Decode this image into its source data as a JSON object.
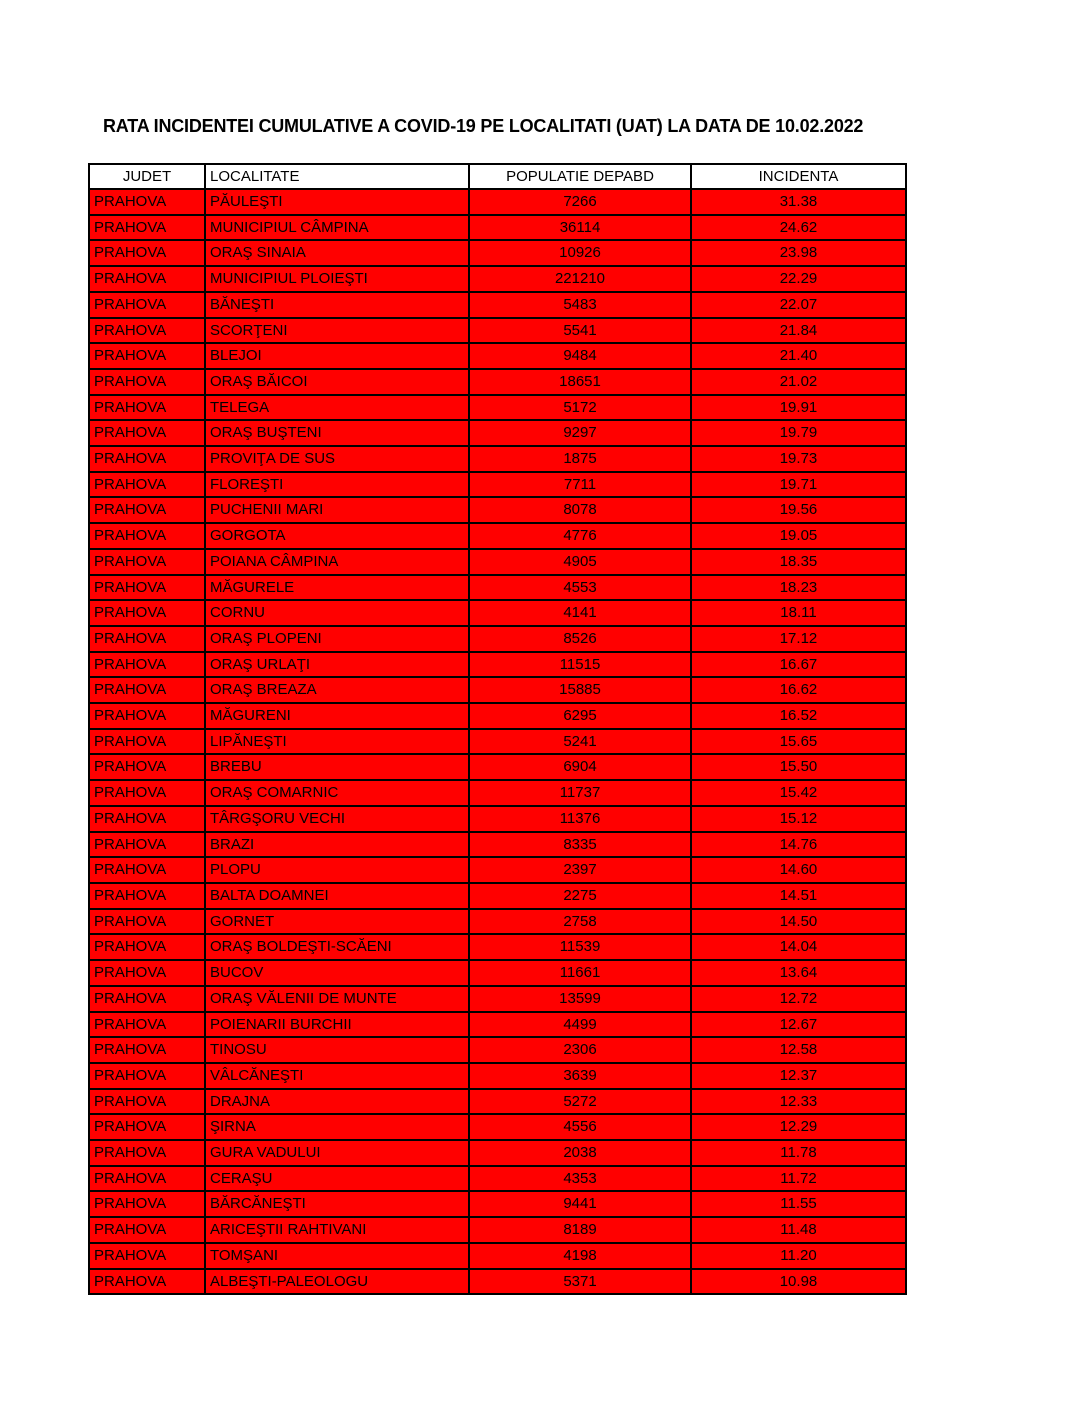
{
  "page": {
    "title": "RATA INCIDENTEI CUMULATIVE A COVID-19 PE LOCALITATI (UAT) LA DATA DE 10.02.2022"
  },
  "colors": {
    "row_background": "#FF0000",
    "header_background": "#FFFFFF",
    "border_color": "#000000",
    "text_color": "#000000"
  },
  "table": {
    "headers": [
      "JUDET",
      "LOCALITATE",
      "POPULATIE DEPABD",
      "INCIDENTA"
    ],
    "rows": [
      [
        "PRAHOVA",
        "PĂULEŞTI",
        "7266",
        "31.38"
      ],
      [
        "PRAHOVA",
        "MUNICIPIUL CÂMPINA",
        "36114",
        "24.62"
      ],
      [
        "PRAHOVA",
        "ORAŞ SINAIA",
        "10926",
        "23.98"
      ],
      [
        "PRAHOVA",
        "MUNICIPIUL PLOIEŞTI",
        "221210",
        "22.29"
      ],
      [
        "PRAHOVA",
        "BĂNEŞTI",
        "5483",
        "22.07"
      ],
      [
        "PRAHOVA",
        "SCORŢENI",
        "5541",
        "21.84"
      ],
      [
        "PRAHOVA",
        "BLEJOI",
        "9484",
        "21.40"
      ],
      [
        "PRAHOVA",
        "ORAŞ BĂICOI",
        "18651",
        "21.02"
      ],
      [
        "PRAHOVA",
        "TELEGA",
        "5172",
        "19.91"
      ],
      [
        "PRAHOVA",
        "ORAŞ BUŞTENI",
        "9297",
        "19.79"
      ],
      [
        "PRAHOVA",
        "PROVIŢA DE SUS",
        "1875",
        "19.73"
      ],
      [
        "PRAHOVA",
        "FLOREŞTI",
        "7711",
        "19.71"
      ],
      [
        "PRAHOVA",
        "PUCHENII MARI",
        "8078",
        "19.56"
      ],
      [
        "PRAHOVA",
        "GORGOTA",
        "4776",
        "19.05"
      ],
      [
        "PRAHOVA",
        "POIANA CÂMPINA",
        "4905",
        "18.35"
      ],
      [
        "PRAHOVA",
        "MĂGURELE",
        "4553",
        "18.23"
      ],
      [
        "PRAHOVA",
        "CORNU",
        "4141",
        "18.11"
      ],
      [
        "PRAHOVA",
        "ORAŞ PLOPENI",
        "8526",
        "17.12"
      ],
      [
        "PRAHOVA",
        "ORAŞ URLAŢI",
        "11515",
        "16.67"
      ],
      [
        "PRAHOVA",
        "ORAŞ BREAZA",
        "15885",
        "16.62"
      ],
      [
        "PRAHOVA",
        "MĂGURENI",
        "6295",
        "16.52"
      ],
      [
        "PRAHOVA",
        "LIPĂNEŞTI",
        "5241",
        "15.65"
      ],
      [
        "PRAHOVA",
        "BREBU",
        "6904",
        "15.50"
      ],
      [
        "PRAHOVA",
        "ORAŞ COMARNIC",
        "11737",
        "15.42"
      ],
      [
        "PRAHOVA",
        "TÂRGŞORU VECHI",
        "11376",
        "15.12"
      ],
      [
        "PRAHOVA",
        "BRAZI",
        "8335",
        "14.76"
      ],
      [
        "PRAHOVA",
        "PLOPU",
        "2397",
        "14.60"
      ],
      [
        "PRAHOVA",
        "BALTA DOAMNEI",
        "2275",
        "14.51"
      ],
      [
        "PRAHOVA",
        "GORNET",
        "2758",
        "14.50"
      ],
      [
        "PRAHOVA",
        "ORAŞ BOLDEŞTI-SCĂENI",
        "11539",
        "14.04"
      ],
      [
        "PRAHOVA",
        "BUCOV",
        "11661",
        "13.64"
      ],
      [
        "PRAHOVA",
        "ORAŞ VĂLENII DE MUNTE",
        "13599",
        "12.72"
      ],
      [
        "PRAHOVA",
        "POIENARII BURCHII",
        "4499",
        "12.67"
      ],
      [
        "PRAHOVA",
        "TINOSU",
        "2306",
        "12.58"
      ],
      [
        "PRAHOVA",
        "VÂLCĂNEŞTI",
        "3639",
        "12.37"
      ],
      [
        "PRAHOVA",
        "DRAJNA",
        "5272",
        "12.33"
      ],
      [
        "PRAHOVA",
        "ŞIRNA",
        "4556",
        "12.29"
      ],
      [
        "PRAHOVA",
        "GURA VADULUI",
        "2038",
        "11.78"
      ],
      [
        "PRAHOVA",
        "CERAŞU",
        "4353",
        "11.72"
      ],
      [
        "PRAHOVA",
        "BĂRCĂNEŞTI",
        "9441",
        "11.55"
      ],
      [
        "PRAHOVA",
        "ARICEŞTII RAHTIVANI",
        "8189",
        "11.48"
      ],
      [
        "PRAHOVA",
        "TOMŞANI",
        "4198",
        "11.20"
      ],
      [
        "PRAHOVA",
        "ALBEŞTI-PALEOLOGU",
        "5371",
        "10.98"
      ]
    ]
  }
}
